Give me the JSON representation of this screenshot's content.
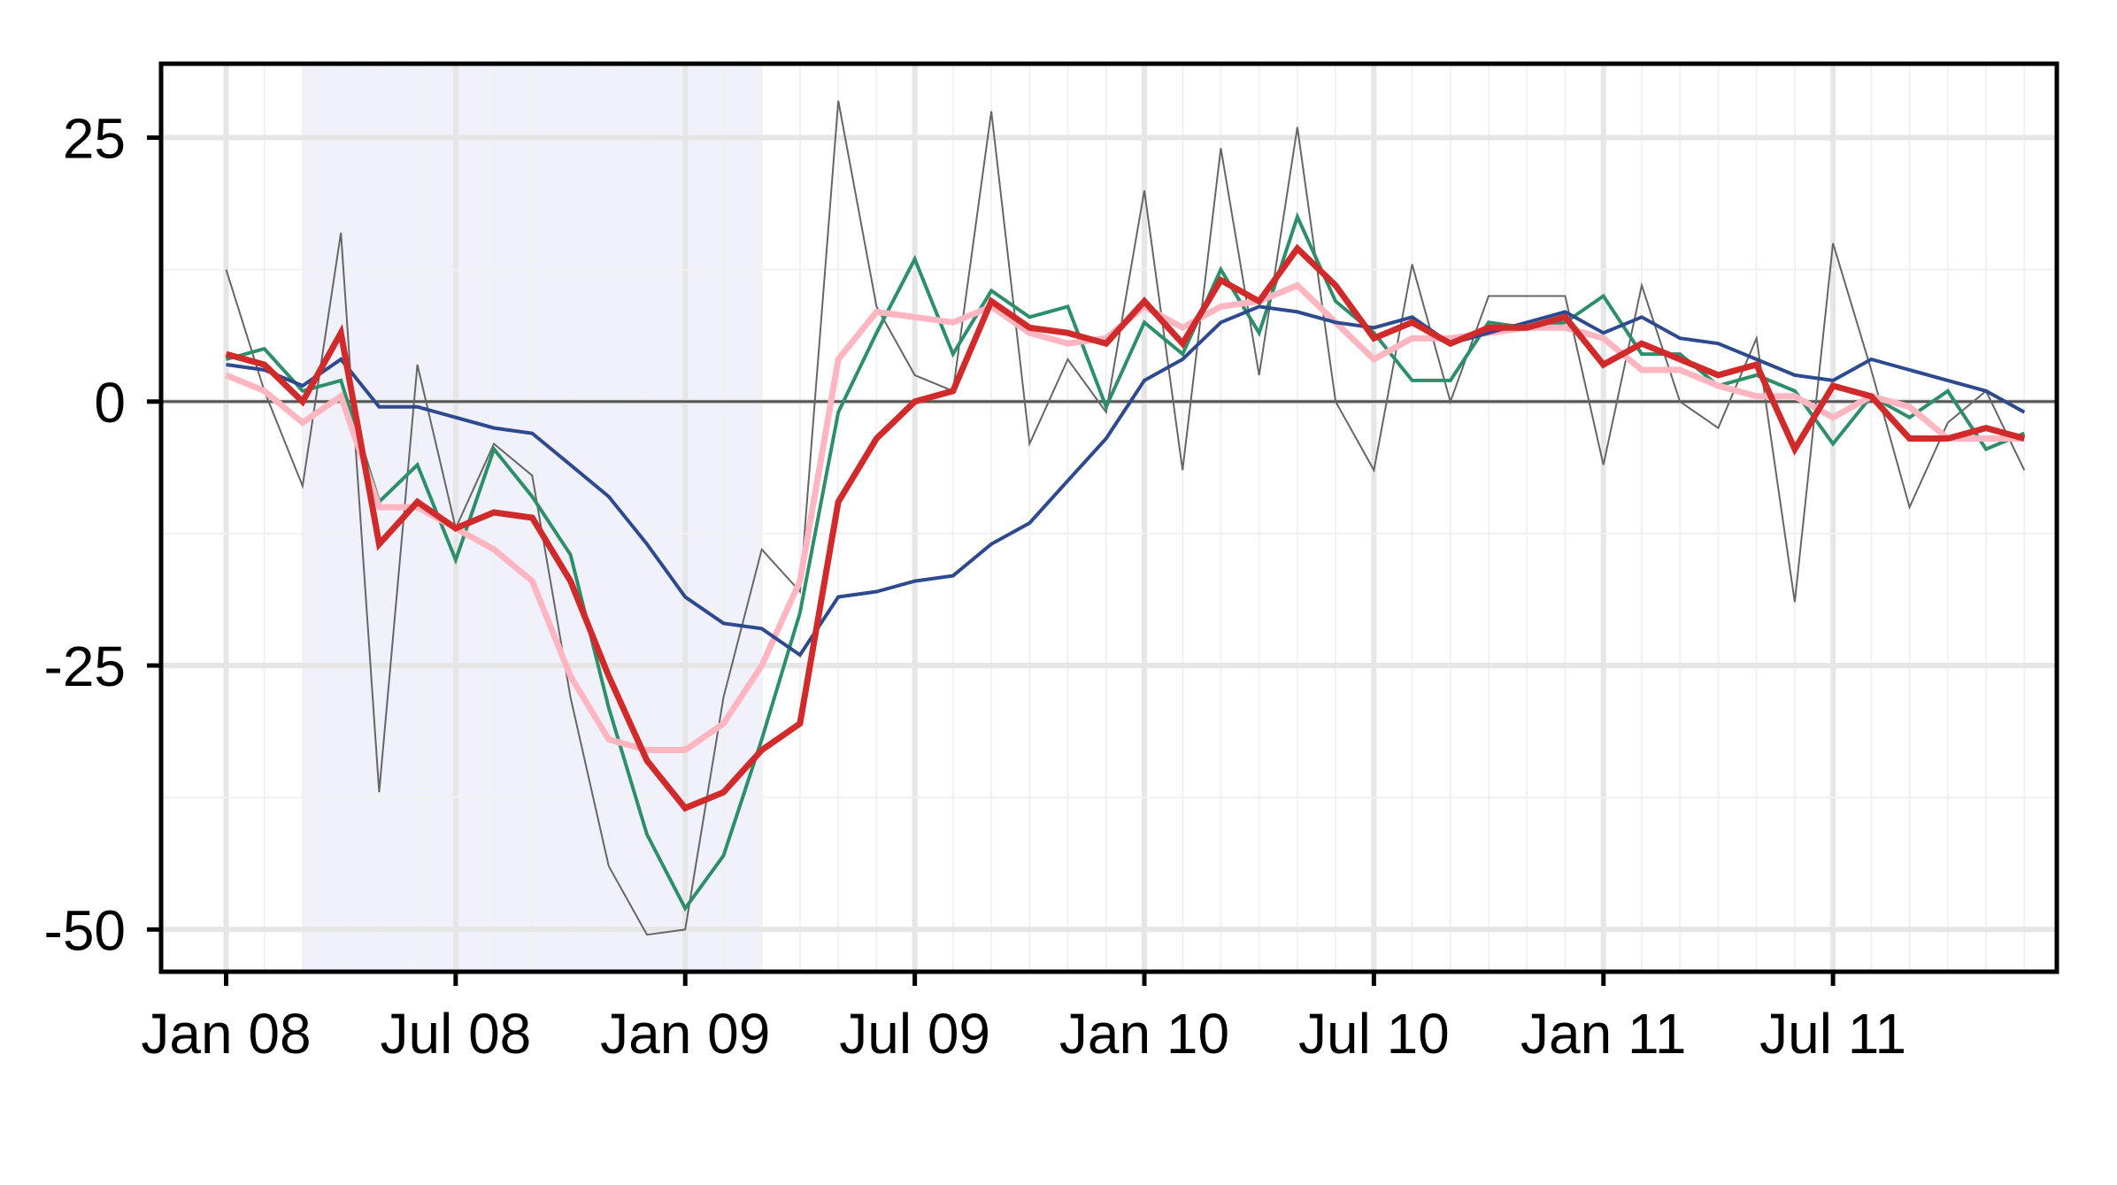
{
  "chart_data": {
    "type": "line",
    "title": "",
    "xlabel": "",
    "ylabel": "",
    "x_tick_labels": [
      "Jan 08",
      "Jul 08",
      "Jan 09",
      "Jul 09",
      "Jan 10",
      "Jul 10",
      "Jan 11",
      "Jul 11"
    ],
    "y_tick_labels": [
      "25",
      "0",
      "-25",
      "-50"
    ],
    "y_ticks": [
      25,
      0,
      -25,
      -50
    ],
    "ylim": [
      -54,
      32
    ],
    "xlim": [
      "2007-12",
      "2011-12"
    ],
    "grid": true,
    "zero_line": true,
    "shaded_region": {
      "from": "2008-03",
      "to": "2009-03",
      "color": "#eeeefc"
    },
    "months": [
      "2008-01",
      "2008-02",
      "2008-03",
      "2008-04",
      "2008-05",
      "2008-06",
      "2008-07",
      "2008-08",
      "2008-09",
      "2008-10",
      "2008-11",
      "2008-12",
      "2009-01",
      "2009-02",
      "2009-03",
      "2009-04",
      "2009-05",
      "2009-06",
      "2009-07",
      "2009-08",
      "2009-09",
      "2009-10",
      "2009-11",
      "2009-12",
      "2010-01",
      "2010-02",
      "2010-03",
      "2010-04",
      "2010-05",
      "2010-06",
      "2010-07",
      "2010-08",
      "2010-09",
      "2010-10",
      "2010-11",
      "2010-12",
      "2011-01",
      "2011-02",
      "2011-03",
      "2011-04",
      "2011-05",
      "2011-06",
      "2011-07",
      "2011-08",
      "2011-09",
      "2011-10",
      "2011-11",
      "2011-12"
    ],
    "series": [
      {
        "color": "#666666",
        "width": 2,
        "values": [
          12.5,
          1,
          -8,
          16,
          -37,
          3.5,
          -12,
          -4,
          -7,
          -28,
          -44,
          -50.5,
          -50,
          -28,
          -14,
          -18,
          28.5,
          9,
          2.5,
          1,
          27.5,
          -4,
          4,
          -1,
          20,
          -6.5,
          24,
          2.5,
          26,
          0,
          -6.5,
          13,
          0,
          10,
          10,
          10,
          -6,
          11,
          0,
          -2.5,
          6,
          -19,
          15,
          3,
          -10,
          -2,
          1,
          -6.5
        ]
      },
      {
        "color": "#2d8f6a",
        "width": 4,
        "values": [
          4,
          5,
          1,
          2,
          -9.5,
          -6,
          -15,
          -4.5,
          -9,
          -14.5,
          -29,
          -41,
          -48,
          -43,
          -32,
          -20,
          -1,
          6.5,
          13.5,
          4.5,
          10.5,
          8,
          9,
          -0.5,
          7.5,
          4.5,
          12.5,
          6.5,
          17.5,
          9.5,
          6.5,
          2,
          2,
          7.5,
          7,
          7.5,
          10,
          4.5,
          4.5,
          1.5,
          2.5,
          1,
          -4,
          0.5,
          -1.5,
          1,
          -4.5,
          -3
        ]
      },
      {
        "color": "#ffb6c1",
        "width": 7,
        "values": [
          2.5,
          1,
          -2,
          0.5,
          -10,
          -10,
          -12,
          -14,
          -17,
          -26,
          -32,
          -33,
          -33,
          -30.5,
          -25,
          -17,
          4,
          8.5,
          8,
          7.5,
          9,
          6.5,
          5.5,
          6,
          9,
          7,
          9,
          9.5,
          11,
          7.5,
          4,
          6,
          6,
          6.5,
          7,
          7,
          6,
          3,
          3,
          1.5,
          0.5,
          0.5,
          -1.5,
          0.5,
          -0.5,
          -3.5,
          -3.5,
          -3.5
        ]
      },
      {
        "color": "#2e4a8f",
        "width": 4,
        "values": [
          3.5,
          3,
          1.5,
          4,
          -0.5,
          -0.5,
          -1.5,
          -2.5,
          -3,
          -6,
          -9,
          -13.5,
          -18.5,
          -21,
          -21.5,
          -24,
          -18.5,
          -18,
          -17,
          -16.5,
          -13.5,
          -11.5,
          -7.5,
          -3.5,
          2,
          4,
          7.5,
          9,
          8.5,
          7.5,
          7,
          8,
          5.5,
          6.5,
          7.5,
          8.5,
          6.5,
          8,
          6,
          5.5,
          4,
          2.5,
          2,
          4,
          3,
          2,
          1,
          -1
        ]
      },
      {
        "color": "#d02a2a",
        "width": 7,
        "values": [
          4.5,
          3.5,
          0,
          6.5,
          -13.5,
          -9.5,
          -12,
          -10.5,
          -11,
          -17,
          -26,
          -34,
          -38.5,
          -37,
          -33,
          -30.5,
          -9.5,
          -3.5,
          0,
          1,
          9.5,
          7,
          6.5,
          5.5,
          9.5,
          5.5,
          11.5,
          9.5,
          14.5,
          11,
          6,
          7.5,
          5.5,
          7,
          7,
          8,
          3.5,
          5.5,
          4,
          2.5,
          3.5,
          -4.5,
          1.5,
          0.5,
          -3.5,
          -3.5,
          -2.5,
          -3.5
        ]
      }
    ]
  }
}
